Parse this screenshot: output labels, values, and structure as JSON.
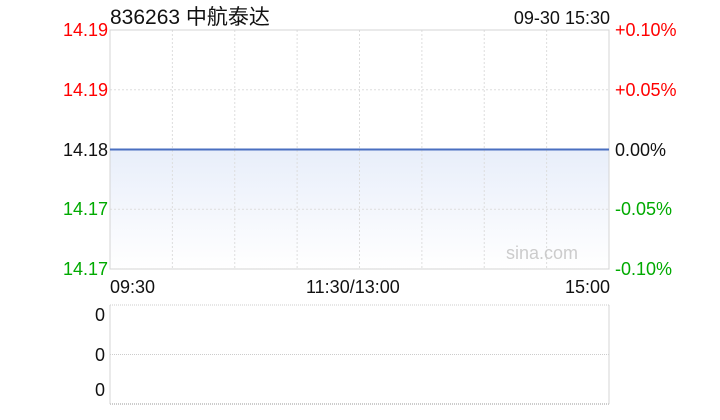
{
  "header": {
    "title": "836263 中航泰达",
    "datetime": "09-30 15:30"
  },
  "watermark": "sina.com",
  "colors": {
    "up": "#ff0000",
    "down": "#00aa00",
    "flat": "#111111",
    "line": "#4a6fc0",
    "fill": "#e8eefa"
  },
  "chart_data": [
    {
      "type": "area",
      "price_ticks": [
        "14.19",
        "14.19",
        "14.18",
        "14.17",
        "14.17"
      ],
      "pct_ticks": [
        "+0.10%",
        "+0.05%",
        "0.00%",
        "-0.05%",
        "-0.10%"
      ],
      "x_ticks": [
        "09:30",
        "11:30/13:00",
        "15:00"
      ],
      "ylim_pct": [
        -0.1,
        0.1
      ],
      "prev_close": 14.18,
      "series": [
        {
          "x": [
            "09:30",
            "15:00"
          ],
          "values": [
            14.18,
            14.18
          ]
        }
      ],
      "grid": true
    },
    {
      "type": "bar",
      "y_ticks": [
        "0",
        "0",
        "0"
      ],
      "values": [],
      "grid": true
    }
  ]
}
